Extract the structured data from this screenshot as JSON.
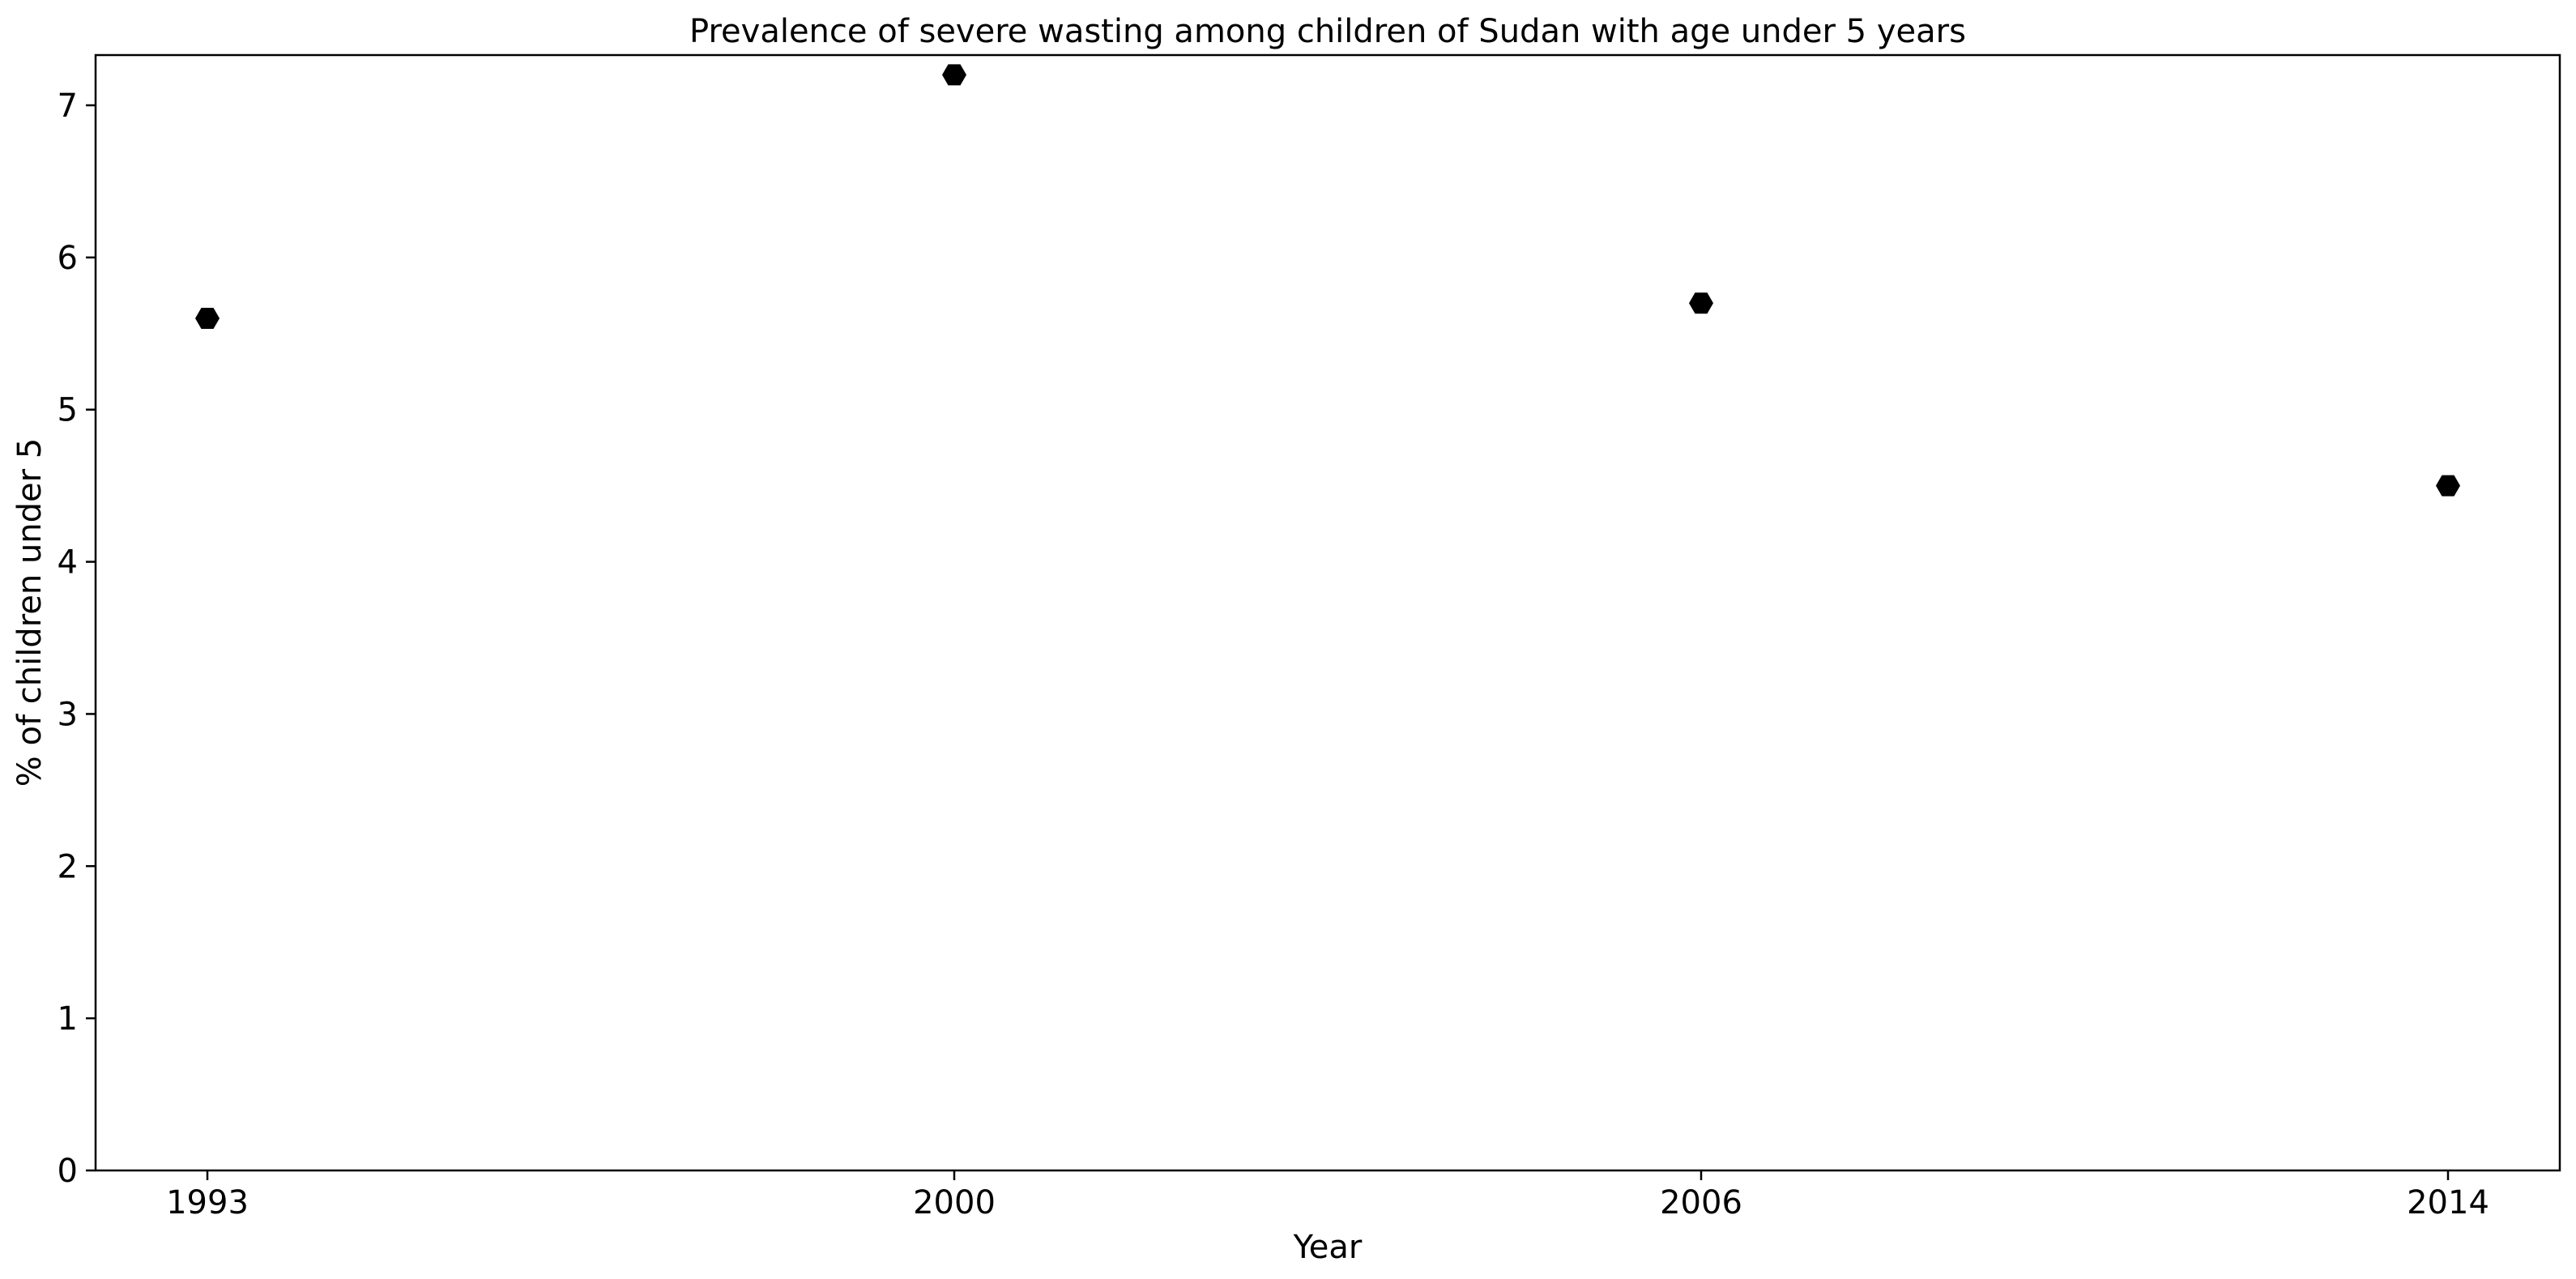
{
  "chart_data": {
    "type": "scatter",
    "title": "Prevalence of severe wasting among children of Sudan with age under 5 years",
    "xlabel": "Year",
    "ylabel": "% of children under 5",
    "categories": [
      "1993",
      "2000",
      "2006",
      "2014"
    ],
    "values": [
      5.6,
      7.2,
      5.7,
      4.5
    ],
    "ylim": [
      0,
      7.33
    ],
    "yticks": [
      "0",
      "1",
      "2",
      "3",
      "4",
      "5",
      "6",
      "7"
    ],
    "marker": "hexagon",
    "marker_color": "#000000",
    "grid": false,
    "legend": false
  }
}
